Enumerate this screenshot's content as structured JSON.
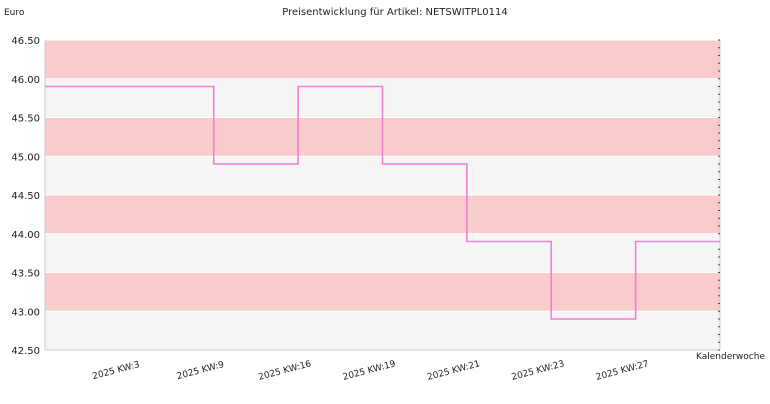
{
  "chart_data": {
    "type": "line",
    "title": "Preisentwicklung für Artikel: NETSWITPL0114",
    "ylabel": "Euro",
    "xlabel": "Kalenderwoche",
    "ylim": [
      42.5,
      46.5
    ],
    "y_ticks": [
      "42.50",
      "43.00",
      "43.50",
      "44.00",
      "44.50",
      "45.00",
      "45.50",
      "46.00",
      "46.50"
    ],
    "x_tick_labels": [
      "2025 KW:3",
      "2025 KW:9",
      "2025 KW:16",
      "2025 KW:19",
      "2025 KW:21",
      "2025 KW:23",
      "2025 KW:27"
    ],
    "step": true,
    "grid": true,
    "band_colors": [
      "#f8cccc",
      "#f5f5f5"
    ],
    "series": [
      {
        "color": "#f080d0",
        "values": [
          45.9,
          45.9,
          44.9,
          45.9,
          44.9,
          43.9,
          42.9,
          43.9
        ]
      }
    ]
  }
}
